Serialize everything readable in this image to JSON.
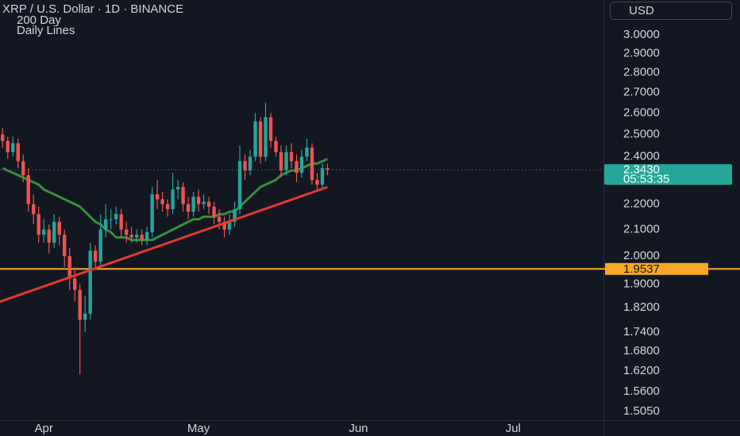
{
  "chart_data": {
    "type": "candlestick",
    "title": "XRP / U.S. Dollar · 1D · BINANCE",
    "annotations": [
      "200 Day",
      "Daily Lines"
    ],
    "currency": "USD",
    "log_scale": true,
    "up_color": "#26a69a",
    "down_color": "#ef5350",
    "xlim": [
      -0.5,
      116.5
    ],
    "xticks": [
      {
        "value": 8,
        "label": "Apr"
      },
      {
        "value": 38,
        "label": "May"
      },
      {
        "value": 69,
        "label": "Jun"
      },
      {
        "value": 99,
        "label": "Jul"
      }
    ],
    "ylim": [
      1.481,
      3.198
    ],
    "yticks": [
      {
        "value": 3.0,
        "label": "3.0000"
      },
      {
        "value": 2.9,
        "label": "2.9000"
      },
      {
        "value": 2.8,
        "label": "2.8000"
      },
      {
        "value": 2.7,
        "label": "2.7000"
      },
      {
        "value": 2.6,
        "label": "2.6000"
      },
      {
        "value": 2.5,
        "label": "2.5000"
      },
      {
        "value": 2.4,
        "label": "2.4000"
      },
      {
        "value": 2.2,
        "label": "2.2000"
      },
      {
        "value": 2.1,
        "label": "2.1000"
      },
      {
        "value": 2.0,
        "label": "2.0000"
      },
      {
        "value": 1.9,
        "label": "1.9000"
      },
      {
        "value": 1.82,
        "label": "1.8200"
      },
      {
        "value": 1.74,
        "label": "1.7400"
      },
      {
        "value": 1.68,
        "label": "1.6800"
      },
      {
        "value": 1.62,
        "label": "1.6200"
      },
      {
        "value": 1.56,
        "label": "1.5600"
      },
      {
        "value": 1.505,
        "label": "1.5050"
      }
    ],
    "open": [
      2.5,
      2.47,
      2.42,
      2.46,
      2.38,
      2.32,
      2.2,
      2.16,
      2.08,
      2.1,
      2.05,
      2.13,
      2.08,
      2.0,
      1.92,
      1.88,
      1.78,
      1.8,
      2.02,
      1.98,
      2.1,
      2.14,
      2.14,
      2.16,
      2.1,
      2.08,
      2.07,
      2.08,
      2.06,
      2.09,
      2.24,
      2.22,
      2.2,
      2.18,
      2.26,
      2.27,
      2.2,
      2.17,
      2.23,
      2.2,
      2.21,
      2.19,
      2.15,
      2.13,
      2.1,
      2.13,
      2.18,
      2.38,
      2.34,
      2.4,
      2.56,
      2.4,
      2.58,
      2.47,
      2.42,
      2.34,
      2.42,
      2.38,
      2.33,
      2.4,
      2.44,
      2.3,
      2.28,
      2.35
    ],
    "high": [
      2.53,
      2.49,
      2.49,
      2.48,
      2.41,
      2.35,
      2.24,
      2.19,
      2.14,
      2.12,
      2.16,
      2.15,
      2.1,
      2.03,
      1.96,
      1.9,
      1.86,
      2.05,
      2.04,
      2.16,
      2.2,
      2.18,
      2.19,
      2.18,
      2.13,
      2.11,
      2.1,
      2.1,
      2.11,
      2.27,
      2.3,
      2.25,
      2.22,
      2.33,
      2.3,
      2.29,
      2.23,
      2.25,
      2.26,
      2.24,
      2.23,
      2.21,
      2.18,
      2.15,
      2.16,
      2.21,
      2.45,
      2.41,
      2.43,
      2.6,
      2.58,
      2.65,
      2.6,
      2.49,
      2.45,
      2.45,
      2.46,
      2.41,
      2.43,
      2.48,
      2.46,
      2.33,
      2.37,
      2.37
    ],
    "low": [
      2.44,
      2.39,
      2.4,
      2.35,
      2.29,
      2.17,
      2.12,
      2.05,
      2.05,
      2.01,
      2.03,
      2.04,
      1.96,
      1.88,
      1.84,
      1.61,
      1.74,
      1.78,
      1.95,
      1.96,
      2.07,
      2.1,
      2.12,
      2.07,
      2.05,
      2.05,
      2.05,
      2.04,
      2.04,
      2.07,
      2.18,
      2.17,
      2.15,
      2.16,
      2.22,
      2.17,
      2.14,
      2.15,
      2.17,
      2.18,
      2.16,
      2.12,
      2.1,
      2.07,
      2.08,
      2.11,
      2.16,
      2.3,
      2.32,
      2.38,
      2.37,
      2.38,
      2.44,
      2.4,
      2.31,
      2.32,
      2.35,
      2.29,
      2.31,
      2.38,
      2.28,
      2.25,
      2.26,
      2.32
    ],
    "close": [
      2.47,
      2.42,
      2.46,
      2.38,
      2.32,
      2.2,
      2.16,
      2.08,
      2.1,
      2.05,
      2.13,
      2.08,
      2.0,
      1.92,
      1.88,
      1.78,
      1.8,
      2.02,
      1.98,
      2.1,
      2.14,
      2.14,
      2.16,
      2.1,
      2.08,
      2.07,
      2.08,
      2.06,
      2.09,
      2.24,
      2.22,
      2.2,
      2.18,
      2.26,
      2.27,
      2.2,
      2.17,
      2.23,
      2.2,
      2.21,
      2.19,
      2.15,
      2.13,
      2.1,
      2.13,
      2.18,
      2.38,
      2.34,
      2.4,
      2.56,
      2.4,
      2.58,
      2.47,
      2.42,
      2.34,
      2.42,
      2.38,
      2.33,
      2.4,
      2.44,
      2.3,
      2.28,
      2.35,
      2.343
    ],
    "lines": [
      {
        "color": "#388e3c",
        "values": [
          2.35,
          2.34,
          2.33,
          2.32,
          2.31,
          2.3,
          2.29,
          2.28,
          2.26,
          2.25,
          2.24,
          2.23,
          2.22,
          2.21,
          2.2,
          2.19,
          2.17,
          2.15,
          2.13,
          2.12,
          2.1,
          2.09,
          2.07,
          2.07,
          2.07,
          2.06,
          2.06,
          2.06,
          2.06,
          2.06,
          2.07,
          2.08,
          2.09,
          2.1,
          2.11,
          2.12,
          2.13,
          2.14,
          2.14,
          2.15,
          2.15,
          2.15,
          2.16,
          2.16,
          2.17,
          2.17,
          2.19,
          2.21,
          2.23,
          2.25,
          2.27,
          2.28,
          2.29,
          2.3,
          2.32,
          2.33,
          2.34,
          2.34,
          2.35,
          2.36,
          2.37,
          2.37,
          2.38,
          2.39
        ]
      },
      {
        "color": "#e53935",
        "x": [
          -0.5,
          63
        ],
        "values": [
          1.84,
          2.27
        ]
      }
    ],
    "hline": {
      "value": 1.9537,
      "color": "#f9a825"
    },
    "last_price": {
      "value": 2.343,
      "label": "2.3430",
      "color": "#26a69a"
    },
    "countdown": "05:53:35"
  }
}
